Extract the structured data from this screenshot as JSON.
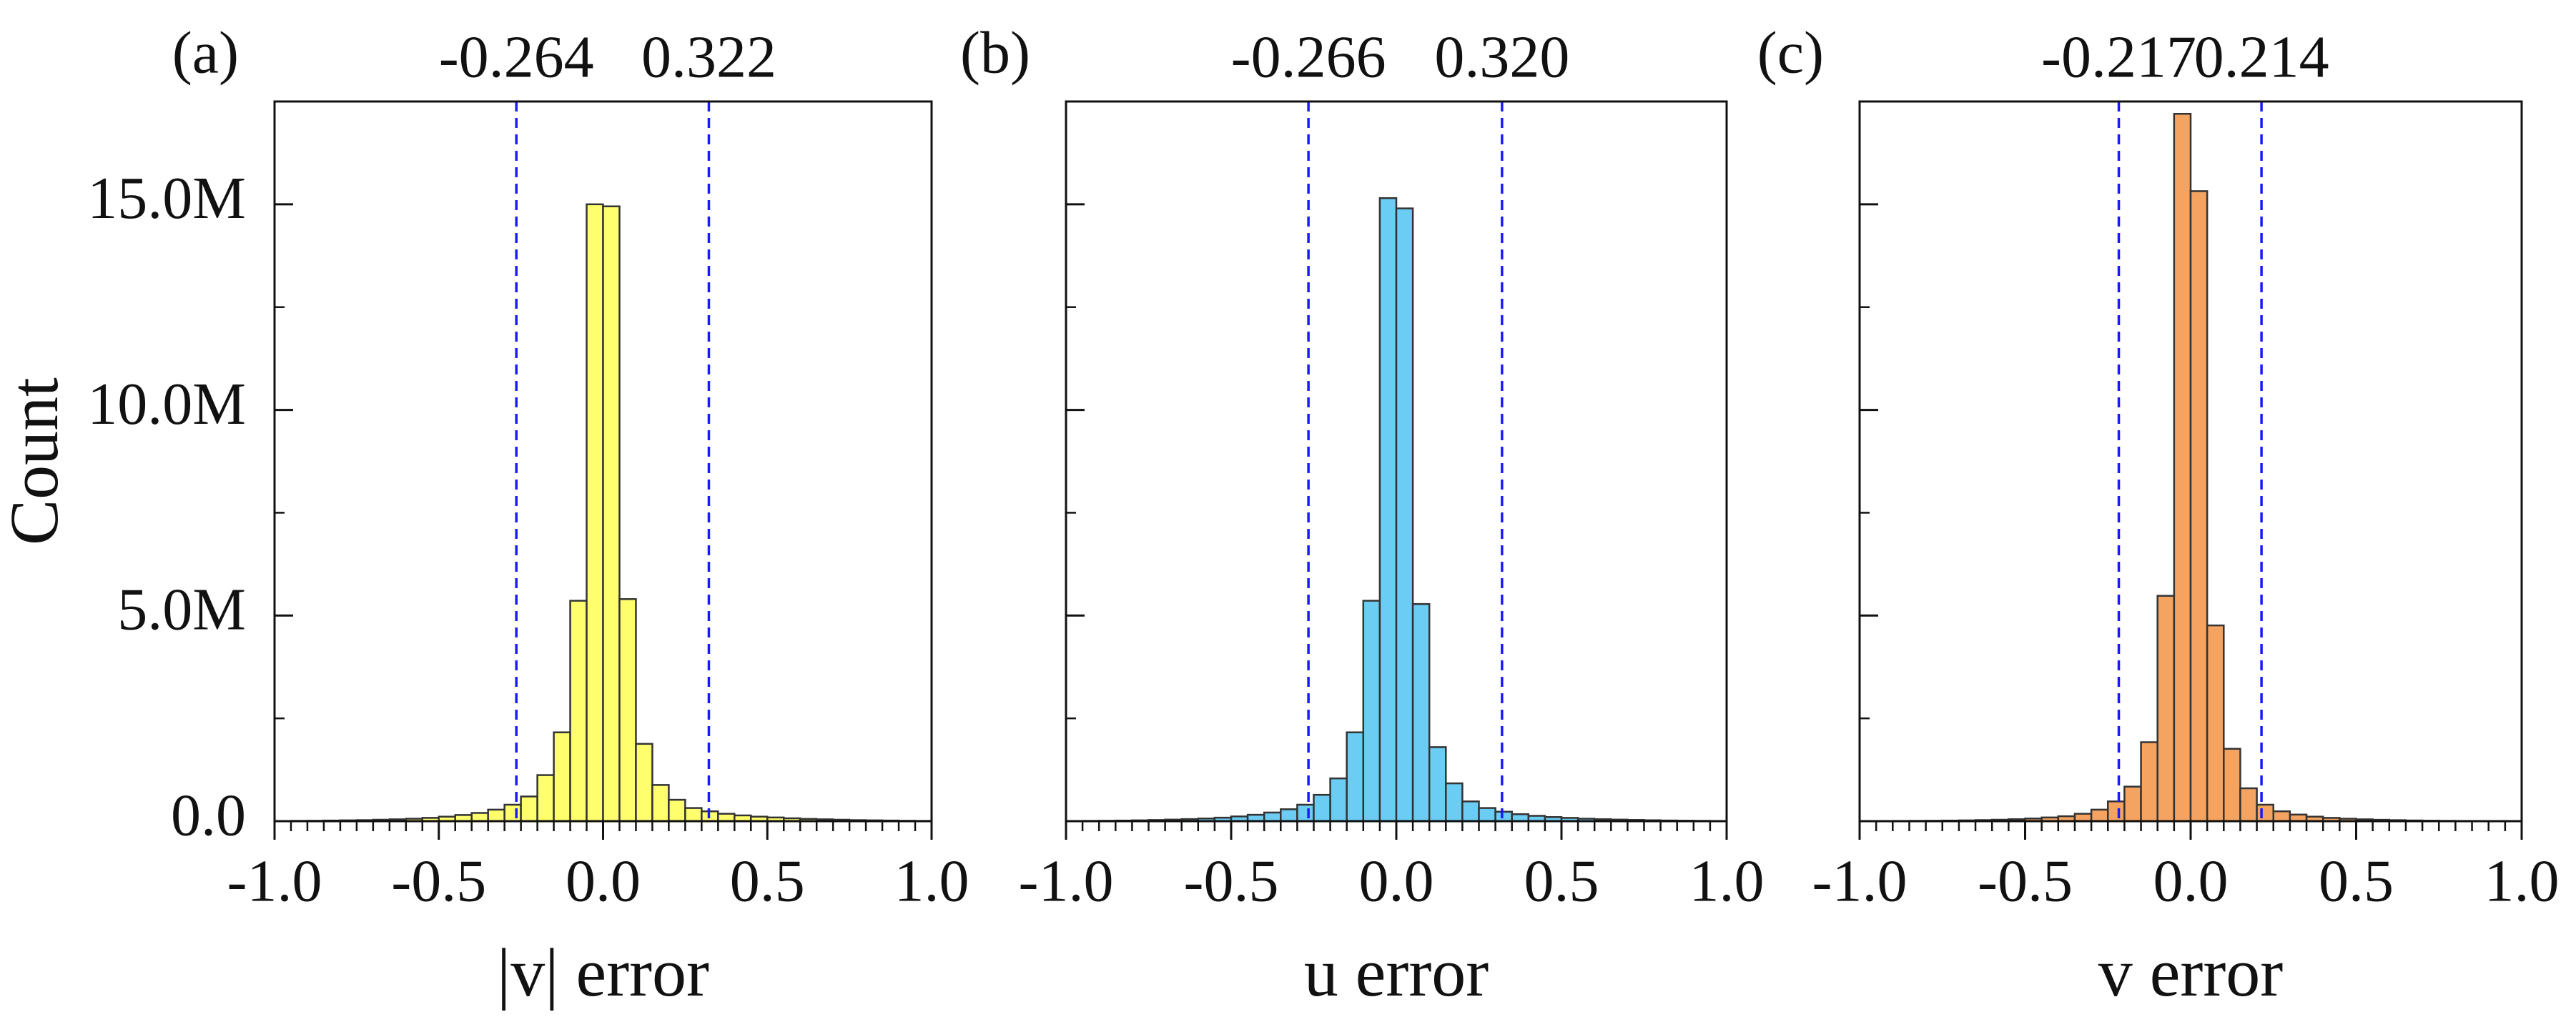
{
  "chart_data": [
    {
      "type": "histogram",
      "label": "(a)",
      "ylabel": "Count",
      "xlabel": "|v| error",
      "bins": [
        -1,
        -0.95,
        -0.9,
        -0.85,
        -0.8,
        -0.75,
        -0.7,
        -0.65,
        -0.6,
        -0.55,
        -0.5,
        -0.45,
        -0.4,
        -0.35,
        -0.3,
        -0.25,
        -0.2,
        -0.15,
        -0.1,
        -0.05,
        0,
        0.05,
        0.1,
        0.15,
        0.2,
        0.25,
        0.3,
        0.35,
        0.4,
        0.45,
        0.5,
        0.55,
        0.6,
        0.65,
        0.7,
        0.75,
        0.8,
        0.85,
        0.9,
        0.95,
        1
      ],
      "values": [
        5000,
        8000,
        10000,
        15000,
        20000,
        25000,
        35000,
        45000,
        60000,
        80000,
        110000,
        150000,
        200000,
        280000,
        400000,
        600000,
        1120000,
        2160000,
        5360000,
        15000000,
        14950000,
        5400000,
        1880000,
        880000,
        520000,
        320000,
        240000,
        180000,
        140000,
        110000,
        90000,
        70000,
        55000,
        45000,
        35000,
        25000,
        20000,
        15000,
        10000,
        6000
      ],
      "color": "#ffff6e",
      "edgecolor": "#333333",
      "xlim": [
        -1,
        1
      ],
      "xticks": [
        {
          "value": -1,
          "label": "-1.0"
        },
        {
          "value": -0.5,
          "label": "-0.5"
        },
        {
          "value": 0,
          "label": "0.0"
        },
        {
          "value": 0.5,
          "label": "0.5"
        },
        {
          "value": 1,
          "label": "1.0"
        }
      ],
      "ylim": [
        0,
        17500000
      ],
      "yticks": [
        {
          "value": 0,
          "label": "0.0"
        },
        {
          "value": 5000000,
          "label": "5.0M"
        },
        {
          "value": 10000000,
          "label": "10.0M"
        },
        {
          "value": 15000000,
          "label": "15.0M"
        }
      ],
      "yminor_ticks": [
        2500000,
        7500000,
        12500000
      ],
      "vlines": [
        {
          "value": -0.264,
          "label": "-0.264"
        },
        {
          "value": 0.322,
          "label": "0.322"
        }
      ],
      "vline_color": "#1a1aff"
    },
    {
      "type": "histogram",
      "label": "(b)",
      "xlabel": "u error",
      "bins": [
        -1,
        -0.95,
        -0.9,
        -0.85,
        -0.8,
        -0.75,
        -0.7,
        -0.65,
        -0.6,
        -0.55,
        -0.5,
        -0.45,
        -0.4,
        -0.35,
        -0.3,
        -0.25,
        -0.2,
        -0.15,
        -0.1,
        -0.05,
        0,
        0.05,
        0.1,
        0.15,
        0.2,
        0.25,
        0.3,
        0.35,
        0.4,
        0.45,
        0.5,
        0.55,
        0.6,
        0.65,
        0.7,
        0.75,
        0.8,
        0.85,
        0.9,
        0.95,
        1
      ],
      "values": [
        5000,
        7000,
        10000,
        14000,
        20000,
        28000,
        38000,
        50000,
        65000,
        85000,
        115000,
        155000,
        210000,
        290000,
        400000,
        640000,
        1040000,
        2160000,
        5360000,
        15150000,
        14900000,
        5280000,
        1800000,
        920000,
        480000,
        320000,
        230000,
        170000,
        130000,
        100000,
        80000,
        60000,
        48000,
        38000,
        30000,
        22000,
        16000,
        12000,
        8000,
        5000
      ],
      "color": "#6ccdf4",
      "edgecolor": "#333333",
      "xlim": [
        -1,
        1
      ],
      "xticks": [
        {
          "value": -1,
          "label": "-1.0"
        },
        {
          "value": -0.5,
          "label": "-0.5"
        },
        {
          "value": 0,
          "label": "0.0"
        },
        {
          "value": 0.5,
          "label": "0.5"
        },
        {
          "value": 1,
          "label": "1.0"
        }
      ],
      "ylim": [
        0,
        17500000
      ],
      "yticks": [
        0,
        5000000,
        10000000,
        15000000
      ],
      "yminor_ticks": [
        2500000,
        7500000,
        12500000
      ],
      "vlines": [
        {
          "value": -0.266,
          "label": "-0.266"
        },
        {
          "value": 0.32,
          "label": "0.320"
        }
      ],
      "vline_color": "#1a1aff"
    },
    {
      "type": "histogram",
      "label": "(c)",
      "xlabel": "v error",
      "bins": [
        -1,
        -0.95,
        -0.9,
        -0.85,
        -0.8,
        -0.75,
        -0.7,
        -0.65,
        -0.6,
        -0.55,
        -0.5,
        -0.45,
        -0.4,
        -0.35,
        -0.3,
        -0.25,
        -0.2,
        -0.15,
        -0.1,
        -0.05,
        0,
        0.05,
        0.1,
        0.15,
        0.2,
        0.25,
        0.3,
        0.35,
        0.4,
        0.45,
        0.5,
        0.55,
        0.6,
        0.65,
        0.7,
        0.75,
        0.8,
        0.85,
        0.9,
        0.95,
        1
      ],
      "values": [
        2000,
        3000,
        5000,
        7000,
        10000,
        14000,
        19000,
        26000,
        35000,
        48000,
        65000,
        90000,
        120000,
        180000,
        280000,
        480000,
        840000,
        1920000,
        5480000,
        17200000,
        15320000,
        4760000,
        1760000,
        800000,
        400000,
        240000,
        160000,
        110000,
        80000,
        60000,
        45000,
        33000,
        24000,
        17000,
        12000,
        8000,
        5000,
        3000,
        2000,
        1000
      ],
      "color": "#f4a460",
      "edgecolor": "#333333",
      "xlim": [
        -1,
        1
      ],
      "xticks": [
        {
          "value": -1,
          "label": "-1.0"
        },
        {
          "value": -0.5,
          "label": "-0.5"
        },
        {
          "value": 0,
          "label": "0.0"
        },
        {
          "value": 0.5,
          "label": "0.5"
        },
        {
          "value": 1,
          "label": "1.0"
        }
      ],
      "ylim": [
        0,
        17500000
      ],
      "yticks": [
        0,
        5000000,
        10000000,
        15000000
      ],
      "yminor_ticks": [
        2500000,
        7500000,
        12500000
      ],
      "vlines": [
        {
          "value": -0.217,
          "label": "-0.217"
        },
        {
          "value": 0.214,
          "label": "0.214"
        }
      ],
      "vline_color": "#1a1aff"
    }
  ]
}
